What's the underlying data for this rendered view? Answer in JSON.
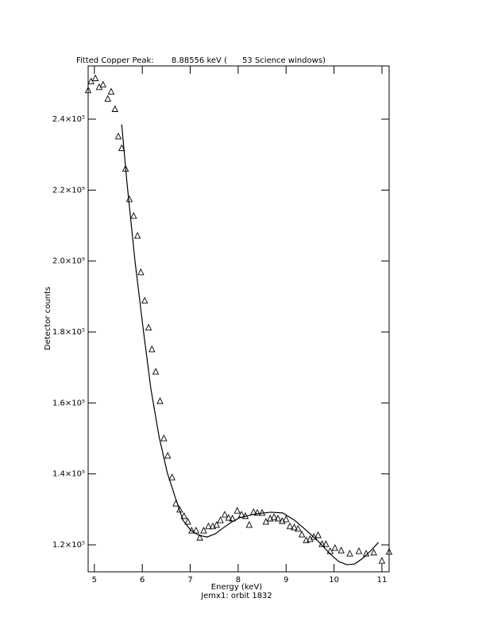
{
  "chart_data": {
    "type": "scatter",
    "title": "Fitted Copper Peak:       8.88556 keV (      53 Science windows)",
    "x_label": "Energy (keV)",
    "subtitle": "Jemx1: orbit 1832",
    "y_label": "Detector counts",
    "xlim": [
      4.87,
      11.15
    ],
    "ylim": [
      112400,
      255000
    ],
    "xticks": [
      5,
      6,
      7,
      8,
      9,
      10,
      11
    ],
    "yticks": [
      {
        "value": 120000,
        "label": "1.2×10⁵"
      },
      {
        "value": 140000,
        "label": "1.4×10⁵"
      },
      {
        "value": 160000,
        "label": "1.6×10⁵"
      },
      {
        "value": 180000,
        "label": "1.8×10⁵"
      },
      {
        "value": 200000,
        "label": "2.0×10⁵"
      },
      {
        "value": 220000,
        "label": "2.2×10⁵"
      },
      {
        "value": 240000,
        "label": "2.4×10⁵"
      }
    ],
    "series": [
      {
        "marker": "triangle",
        "color": "#000000",
        "x": [
          4.87,
          4.93,
          5.02,
          5.1,
          5.18,
          5.28,
          5.35,
          5.43,
          5.5,
          5.57,
          5.65,
          5.73,
          5.82,
          5.9,
          5.97,
          6.05,
          6.13,
          6.2,
          6.28,
          6.37,
          6.45,
          6.53,
          6.62,
          6.7,
          6.78,
          6.87,
          6.95,
          7.03,
          7.12,
          7.2,
          7.28,
          7.38,
          7.47,
          7.55,
          7.63,
          7.72,
          7.8,
          7.88,
          7.98,
          8.07,
          8.15,
          8.23,
          8.32,
          8.4,
          8.5,
          8.58,
          8.67,
          8.75,
          8.83,
          8.92,
          9.0,
          9.08,
          9.17,
          9.25,
          9.33,
          9.42,
          9.5,
          9.58,
          9.67,
          9.75,
          9.83,
          9.92,
          10.02,
          10.15,
          10.33,
          10.52,
          10.67,
          10.83,
          11.0,
          11.15
        ],
        "values": [
          248100,
          250600,
          251500,
          249000,
          249700,
          245700,
          247700,
          242800,
          235100,
          231800,
          226000,
          217400,
          212700,
          207100,
          196800,
          188800,
          181200,
          175100,
          168800,
          160500,
          150000,
          145100,
          139000,
          131600,
          129900,
          128100,
          126500,
          124000,
          124000,
          122000,
          124000,
          125200,
          125200,
          125600,
          126900,
          128500,
          127600,
          127400,
          129600,
          128500,
          128100,
          125600,
          129200,
          129000,
          129000,
          126500,
          127400,
          127800,
          127400,
          126700,
          127200,
          125200,
          124900,
          124500,
          122900,
          121300,
          121600,
          122200,
          122700,
          120200,
          120200,
          118200,
          119100,
          118400,
          117500,
          118200,
          117500,
          117800,
          115500,
          118000
        ]
      },
      {
        "marker": "line",
        "color": "#000000",
        "x": [
          5.57,
          5.68,
          5.85,
          6.02,
          6.18,
          6.35,
          6.52,
          6.68,
          6.85,
          7.02,
          7.18,
          7.35,
          7.52,
          7.68,
          7.85,
          8.02,
          8.35,
          8.68,
          8.93,
          9.18,
          9.43,
          9.68,
          9.93,
          10.1,
          10.27,
          10.43,
          10.6,
          10.77,
          10.93
        ],
        "values": [
          238500,
          222100,
          199700,
          180700,
          163900,
          150500,
          140400,
          133700,
          126900,
          124000,
          122700,
          122200,
          123100,
          124700,
          126300,
          127600,
          128700,
          129200,
          129000,
          126900,
          124000,
          120900,
          117300,
          115300,
          114400,
          114600,
          116200,
          118400,
          120700
        ]
      }
    ]
  }
}
